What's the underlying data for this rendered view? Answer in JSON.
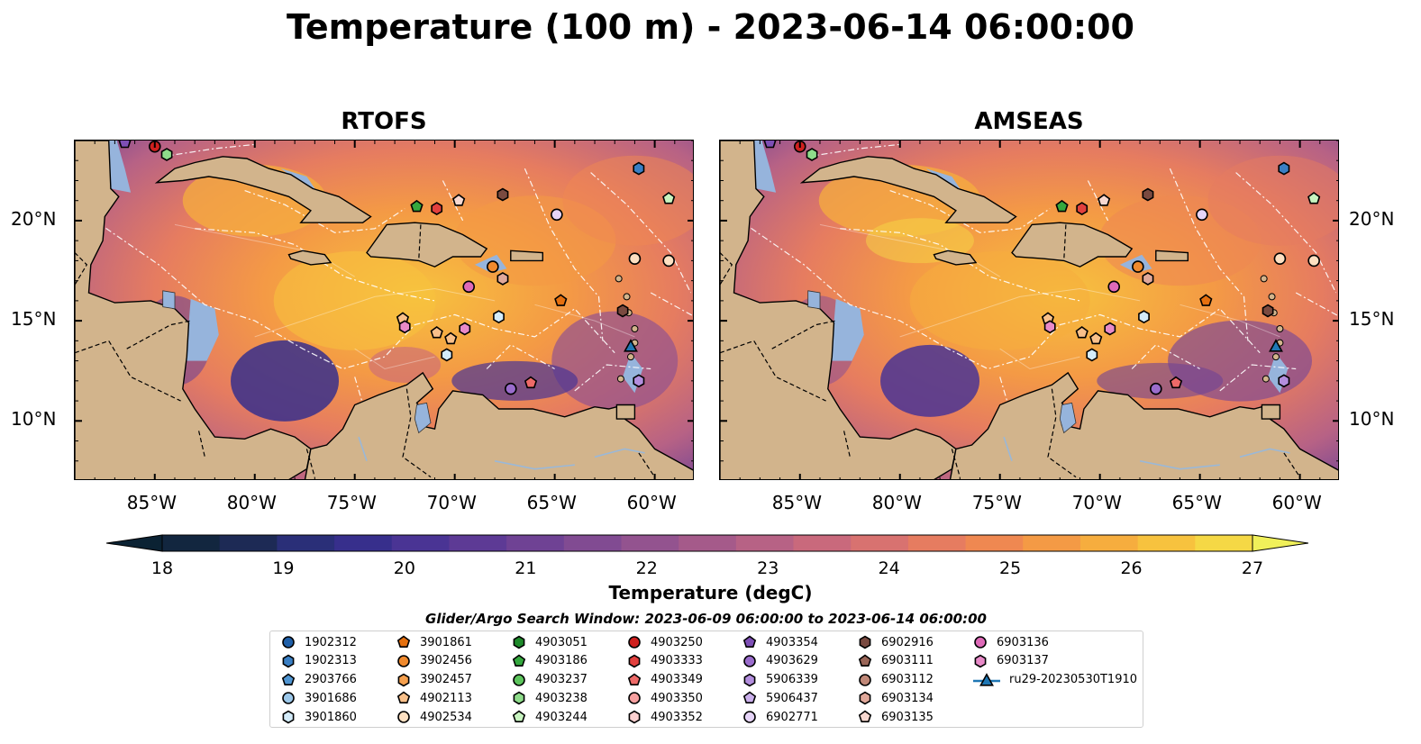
{
  "title": "Temperature (100 m) - 2023-06-14 06:00:00",
  "panels": [
    {
      "title": "RTOFS",
      "offset": 0
    },
    {
      "title": "AMSEAS",
      "offset": 716
    }
  ],
  "lat_labels": [
    "20°N",
    "15°N",
    "10°N"
  ],
  "lon_labels": [
    "85°W",
    "80°W",
    "75°W",
    "70°W",
    "65°W",
    "60°W"
  ],
  "map": {
    "lon_range": [
      -89,
      -58
    ],
    "lat_range": [
      7,
      24
    ],
    "land_color": "#d2b48c",
    "shelf_color": "#96b4dc",
    "deep_color": "#0e2a40"
  },
  "colorbar": {
    "title": "Temperature (degC)",
    "range": [
      18,
      27
    ],
    "tick_labels": [
      "18",
      "19",
      "20",
      "21",
      "22",
      "23",
      "24",
      "25",
      "26",
      "27"
    ],
    "colors": [
      "#0b2233",
      "#12263f",
      "#1d2a55",
      "#2a2f78",
      "#372f8c",
      "#4a3494",
      "#5d3a95",
      "#6f4294",
      "#814b92",
      "#93538f",
      "#a55a8a",
      "#b76285",
      "#c9697c",
      "#d87270",
      "#e67c60",
      "#ef8851",
      "#f49a45",
      "#f6ad3e",
      "#f7c23e",
      "#f5d845",
      "#f0f05a"
    ]
  },
  "legend": {
    "title": "Glider/Argo Search Window: 2023-06-09 06:00:00 to 2023-06-14 06:00:00",
    "items": [
      {
        "label": "1902312",
        "color": "#1f5fa8",
        "shape": "circle"
      },
      {
        "label": "1902313",
        "color": "#3a7fc4",
        "shape": "hexagon"
      },
      {
        "label": "2903766",
        "color": "#4f95d2",
        "shape": "pentagon"
      },
      {
        "label": "3901686",
        "color": "#9cc8ea",
        "shape": "circle"
      },
      {
        "label": "3901860",
        "color": "#d4ecfa",
        "shape": "hexagon"
      },
      {
        "label": "3901861",
        "color": "#e5700f",
        "shape": "pentagon"
      },
      {
        "label": "3902456",
        "color": "#f08a2e",
        "shape": "circle"
      },
      {
        "label": "3902457",
        "color": "#f6a04e",
        "shape": "hexagon"
      },
      {
        "label": "4902113",
        "color": "#f9c08a",
        "shape": "pentagon"
      },
      {
        "label": "4902534",
        "color": "#fde0c2",
        "shape": "circle"
      },
      {
        "label": "4903051",
        "color": "#1e8a2a",
        "shape": "hexagon"
      },
      {
        "label": "4903186",
        "color": "#34a83e",
        "shape": "pentagon"
      },
      {
        "label": "4903237",
        "color": "#5cc45c",
        "shape": "circle"
      },
      {
        "label": "4903238",
        "color": "#8edc8a",
        "shape": "hexagon"
      },
      {
        "label": "4903244",
        "color": "#c8f4c0",
        "shape": "pentagon"
      },
      {
        "label": "4903250",
        "color": "#d0201e",
        "shape": "circle"
      },
      {
        "label": "4903333",
        "color": "#e2403e",
        "shape": "hexagon"
      },
      {
        "label": "4903349",
        "color": "#ee6a68",
        "shape": "pentagon"
      },
      {
        "label": "4903350",
        "color": "#f6a0a0",
        "shape": "circle"
      },
      {
        "label": "4903352",
        "color": "#fcd0d0",
        "shape": "hexagon"
      },
      {
        "label": "4903354",
        "color": "#7e4fb6",
        "shape": "pentagon"
      },
      {
        "label": "4903629",
        "color": "#9a6ccc",
        "shape": "circle"
      },
      {
        "label": "5906339",
        "color": "#b38ede",
        "shape": "hexagon"
      },
      {
        "label": "5906437",
        "color": "#cbb0ec",
        "shape": "pentagon"
      },
      {
        "label": "6902771",
        "color": "#e6d4f8",
        "shape": "circle"
      },
      {
        "label": "6902916",
        "color": "#7a4a40",
        "shape": "hexagon"
      },
      {
        "label": "6903111",
        "color": "#9a6658",
        "shape": "pentagon"
      },
      {
        "label": "6903112",
        "color": "#c08878",
        "shape": "circle"
      },
      {
        "label": "6903134",
        "color": "#e0a89a",
        "shape": "hexagon"
      },
      {
        "label": "6903135",
        "color": "#f8d8d0",
        "shape": "pentagon"
      },
      {
        "label": "6903136",
        "color": "#de6ab8",
        "shape": "circle"
      },
      {
        "label": "6903137",
        "color": "#e88ac8",
        "shape": "hexagon"
      },
      {
        "label": "ru29-20230530T1910",
        "color": "#1f77b4",
        "shape": "triangle-line"
      }
    ]
  },
  "floats": [
    {
      "lon": -86.5,
      "lat": 23.9,
      "item": 20
    },
    {
      "lon": -85.0,
      "lat": 23.7,
      "item": 15
    },
    {
      "lon": -84.4,
      "lat": 23.3,
      "item": 13
    },
    {
      "lon": -60.8,
      "lat": 22.6,
      "item": 1
    },
    {
      "lon": -59.3,
      "lat": 21.1,
      "item": 14
    },
    {
      "lon": -67.6,
      "lat": 21.3,
      "item": 25
    },
    {
      "lon": -69.8,
      "lat": 21.0,
      "item": 29
    },
    {
      "lon": -71.9,
      "lat": 20.7,
      "item": 11
    },
    {
      "lon": -70.9,
      "lat": 20.6,
      "item": 16
    },
    {
      "lon": -64.9,
      "lat": 20.3,
      "item": 24
    },
    {
      "lon": -61.0,
      "lat": 18.1,
      "item": 9
    },
    {
      "lon": -59.3,
      "lat": 18.0,
      "item": 9
    },
    {
      "lon": -68.1,
      "lat": 17.7,
      "item": 6
    },
    {
      "lon": -67.6,
      "lat": 17.1,
      "item": 28
    },
    {
      "lon": -69.3,
      "lat": 16.7,
      "item": 30
    },
    {
      "lon": -64.7,
      "lat": 16.0,
      "item": 5
    },
    {
      "lon": -61.6,
      "lat": 15.5,
      "item": 25
    },
    {
      "lon": -67.8,
      "lat": 15.2,
      "item": 4
    },
    {
      "lon": -72.6,
      "lat": 15.1,
      "item": 8
    },
    {
      "lon": -72.5,
      "lat": 14.7,
      "item": 31
    },
    {
      "lon": -69.5,
      "lat": 14.6,
      "item": 31
    },
    {
      "lon": -70.9,
      "lat": 14.4,
      "item": 8
    },
    {
      "lon": -70.2,
      "lat": 14.1,
      "item": 8
    },
    {
      "lon": -61.2,
      "lat": 13.7,
      "item": 32
    },
    {
      "lon": -70.4,
      "lat": 13.3,
      "item": 4
    },
    {
      "lon": -66.2,
      "lat": 11.9,
      "item": 17
    },
    {
      "lon": -67.2,
      "lat": 11.6,
      "item": 21
    },
    {
      "lon": -60.8,
      "lat": 12.0,
      "item": 22
    }
  ]
}
